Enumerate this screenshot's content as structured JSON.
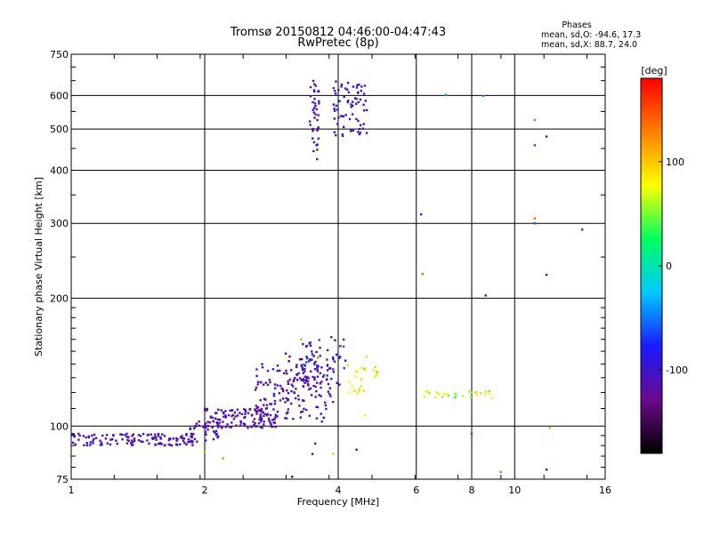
{
  "chart_data": {
    "type": "scatter",
    "title": "Tromsø 20150812 04:46:00-04:47:43",
    "subtitle": "RwPretec (8p)",
    "xlabel": "Frequency [MHz]",
    "ylabel": "Stationary phase Virtual Height [km]",
    "xscale": "log2",
    "yscale": "log",
    "xlim": [
      1,
      16
    ],
    "ylim": [
      75,
      750
    ],
    "x_ticks": [
      1,
      2,
      4,
      6,
      8,
      10,
      16
    ],
    "x_tick_labels": [
      "1",
      "2",
      "4",
      "6",
      "8",
      "10",
      "16"
    ],
    "y_ticks": [
      75,
      100,
      200,
      300,
      400,
      500,
      600,
      750
    ],
    "y_tick_labels": [
      "75",
      "100",
      "200",
      "300",
      "400",
      "500",
      "600",
      "750"
    ],
    "grid": true,
    "grid_x": [
      2,
      4,
      6,
      8,
      10
    ],
    "grid_y": [
      100,
      200,
      300,
      400,
      500,
      600
    ],
    "stats_header": "Phases",
    "stats_lines": [
      "mean, sd,O: -94.6, 17.3",
      "mean, sd,X: 88.7, 24.0"
    ],
    "colorbar": {
      "label": "[deg]",
      "range": [
        -180,
        180
      ],
      "ticks": [
        -100,
        0,
        100
      ],
      "tick_labels": [
        "-100",
        "0",
        "100"
      ],
      "colors": [
        "#000000",
        "#6a0a8a",
        "#1a1aff",
        "#00c8ff",
        "#00ff60",
        "#ffff00",
        "#ff8000",
        "#ff0000"
      ]
    },
    "point_groups": [
      {
        "x_range": [
          1.0,
          1.9
        ],
        "y_range": [
          90,
          96
        ],
        "count": 120,
        "phase_range": [
          -120,
          -95
        ]
      },
      {
        "x_range": [
          1.85,
          2.15
        ],
        "y_range": [
          91,
          103
        ],
        "count": 40,
        "phase_range": [
          -125,
          -95
        ]
      },
      {
        "x_range": [
          2.0,
          2.9
        ],
        "y_range": [
          99,
          110
        ],
        "count": 110,
        "phase_range": [
          -125,
          -95
        ]
      },
      {
        "x_range": [
          2.6,
          3.9
        ],
        "y_range": [
          102,
          140
        ],
        "count": 160,
        "phase_range": [
          -130,
          -90
        ]
      },
      {
        "x_range": [
          3.0,
          3.7
        ],
        "y_range": [
          125,
          155
        ],
        "count": 25,
        "phase_range": [
          -150,
          -120
        ]
      },
      {
        "x_range": [
          3.3,
          4.2
        ],
        "y_range": [
          125,
          162
        ],
        "count": 50,
        "phase_range": [
          -110,
          -60
        ]
      },
      {
        "x_range": [
          4.2,
          4.9
        ],
        "y_range": [
          118,
          148
        ],
        "count": 25,
        "phase_range": [
          60,
          110
        ]
      },
      {
        "x_range": [
          6.2,
          9.0
        ],
        "y_range": [
          116,
          121
        ],
        "count": 30,
        "phase_range": [
          40,
          110
        ]
      },
      {
        "x_range": [
          3.45,
          3.62
        ],
        "y_range": [
          420,
          650
        ],
        "count": 40,
        "phase_range": [
          -115,
          -95
        ]
      },
      {
        "x_range": [
          3.9,
          4.65
        ],
        "y_range": [
          480,
          650
        ],
        "count": 70,
        "phase_range": [
          -115,
          -85
        ]
      }
    ],
    "points": [
      {
        "x": 3.3,
        "y": 160,
        "phase": 120
      },
      {
        "x": 3.6,
        "y": 145,
        "phase": 130
      },
      {
        "x": 3.9,
        "y": 86,
        "phase": 100
      },
      {
        "x": 2.0,
        "y": 87,
        "phase": 120
      },
      {
        "x": 2.2,
        "y": 84,
        "phase": 130
      },
      {
        "x": 3.15,
        "y": 76,
        "phase": -150
      },
      {
        "x": 3.5,
        "y": 86,
        "phase": -105
      },
      {
        "x": 3.55,
        "y": 91,
        "phase": -105
      },
      {
        "x": 4.4,
        "y": 88,
        "phase": -110
      },
      {
        "x": 4.6,
        "y": 106,
        "phase": 80
      },
      {
        "x": 7.0,
        "y": 602,
        "phase": -40
      },
      {
        "x": 8.5,
        "y": 598,
        "phase": -40
      },
      {
        "x": 11.1,
        "y": 525,
        "phase": 140
      },
      {
        "x": 11.8,
        "y": 480,
        "phase": -110
      },
      {
        "x": 11.1,
        "y": 458,
        "phase": -60
      },
      {
        "x": 6.15,
        "y": 315,
        "phase": -80
      },
      {
        "x": 11.1,
        "y": 308,
        "phase": 140
      },
      {
        "x": 11.1,
        "y": 300,
        "phase": -60
      },
      {
        "x": 14.2,
        "y": 290,
        "phase": -70
      },
      {
        "x": 6.2,
        "y": 228,
        "phase": 140
      },
      {
        "x": 11.8,
        "y": 227,
        "phase": -110
      },
      {
        "x": 8.6,
        "y": 203,
        "phase": -110
      },
      {
        "x": 8.0,
        "y": 96,
        "phase": -60
      },
      {
        "x": 9.3,
        "y": 78,
        "phase": 140
      },
      {
        "x": 11.8,
        "y": 79,
        "phase": -80
      },
      {
        "x": 12.0,
        "y": 99,
        "phase": 110
      }
    ]
  }
}
